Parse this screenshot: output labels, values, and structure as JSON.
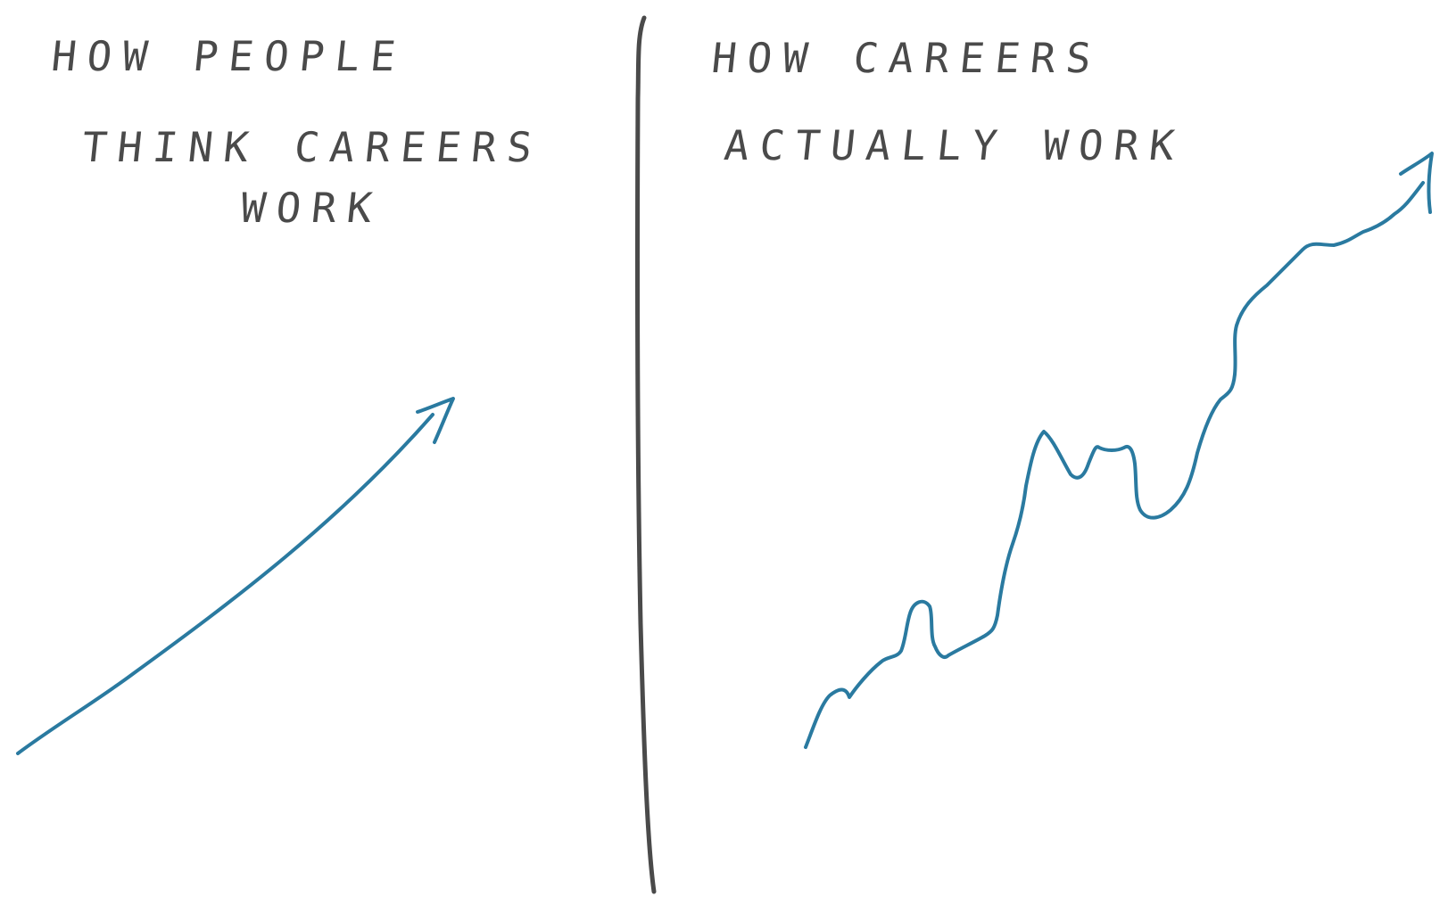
{
  "left_panel": {
    "title_lines": [
      "HOW PEOPLE",
      "THINK CAREERS",
      "WORK"
    ]
  },
  "right_panel": {
    "title_lines": [
      "HOW CAREERS",
      "ACTUALLY WORK"
    ]
  },
  "colors": {
    "ink": "#4a4a4a",
    "line": "#2a7aa0",
    "background": "#ffffff"
  }
}
